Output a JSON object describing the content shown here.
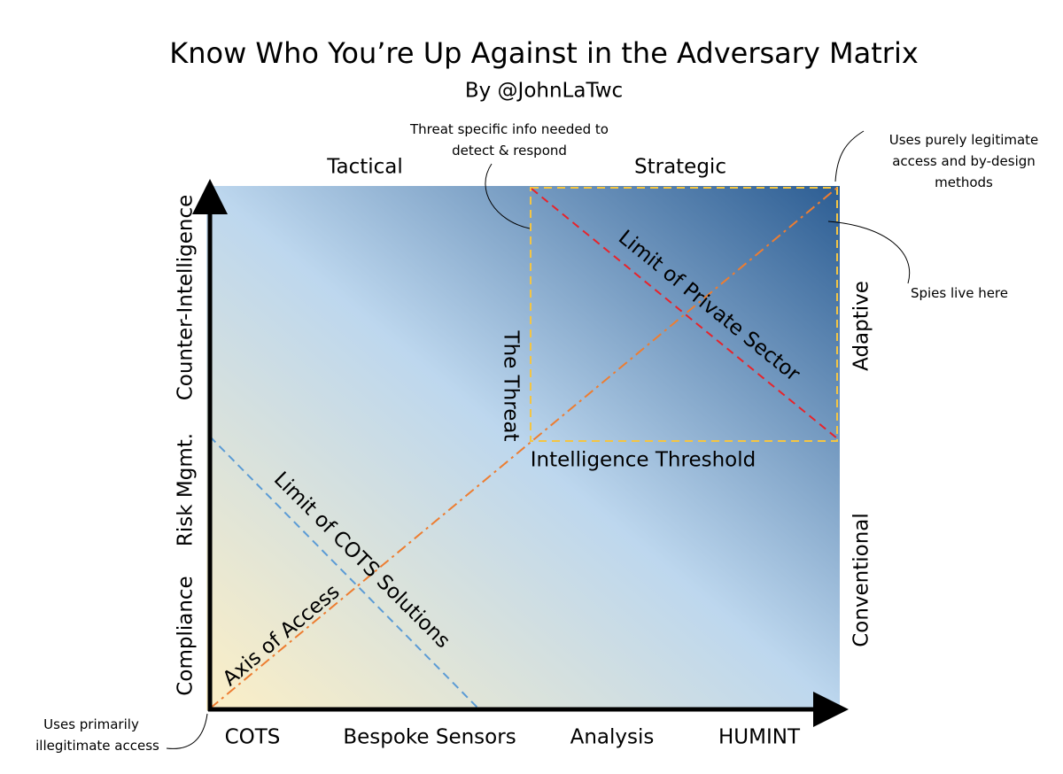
{
  "title": "Know Who You’re Up Against in the Adversary Matrix",
  "subtitle": "By @JohnLaTwc",
  "top_labels": [
    "Tactical",
    "Strategic"
  ],
  "left_labels": [
    "Counter-Intelligence",
    "Risk Mgmt.",
    "Compliance"
  ],
  "right_labels": [
    "Adaptive",
    "Conventional"
  ],
  "bottom_labels": [
    "COTS",
    "Bespoke Sensors",
    "Analysis",
    "HUMINT"
  ],
  "regions": {
    "private_sector": "Limit of Private Sector",
    "cots": "Limit of COTS Solutions",
    "access": "Axis of Access",
    "threat": "The Threat",
    "threshold": "Intelligence Threshold"
  },
  "callouts": [
    {
      "lines": [
        "Threat specific info needed to",
        "detect & respond"
      ]
    },
    {
      "lines": [
        "Uses purely legitimate",
        "access and by-design",
        "methods"
      ]
    },
    {
      "lines": [
        "Spies live here"
      ]
    },
    {
      "lines": [
        "Uses primarily",
        "illegitimate access"
      ]
    }
  ]
}
